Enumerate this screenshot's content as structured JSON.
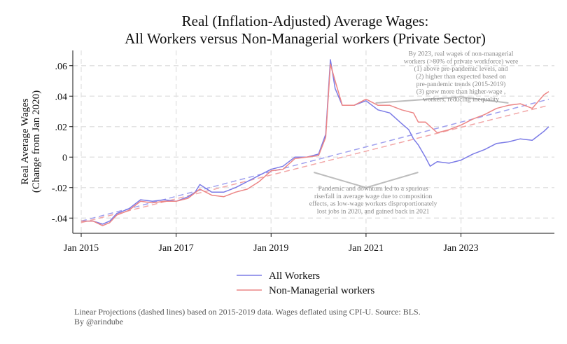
{
  "chart_data": {
    "type": "line",
    "title": [
      "Real (Inflation-Adjusted) Average Wages:",
      "All Workers versus Non-Managerial workers (Private Sector)"
    ],
    "ylabel": [
      "Real Average Wages",
      "(Change from Jan 2020)"
    ],
    "xlabel": "",
    "x_start": "Jan 2015",
    "x_unit": "years since Jan 2015",
    "xlim": [
      0,
      9.85
    ],
    "ylim": [
      -0.05,
      0.07
    ],
    "xticks": [
      {
        "label": "Jan 2015",
        "value": 0
      },
      {
        "label": "Jan 2017",
        "value": 2
      },
      {
        "label": "Jan 2019",
        "value": 4
      },
      {
        "label": "Jan 2021",
        "value": 6
      },
      {
        "label": "Jan 2023",
        "value": 8
      }
    ],
    "yticks": [
      {
        "label": "-.04",
        "value": -0.04
      },
      {
        "label": "-.02",
        "value": -0.02
      },
      {
        "label": "0",
        "value": 0
      },
      {
        "label": ".02",
        "value": 0.02
      },
      {
        "label": ".04",
        "value": 0.04
      },
      {
        "label": ".06",
        "value": 0.06
      }
    ],
    "grid": true,
    "legend_position": "bottom",
    "series": [
      {
        "name": "All Workers",
        "color": "#7b7be6",
        "points": [
          [
            0,
            -0.042
          ],
          [
            0.25,
            -0.042
          ],
          [
            0.45,
            -0.044
          ],
          [
            0.6,
            -0.042
          ],
          [
            0.75,
            -0.037
          ],
          [
            1.0,
            -0.034
          ],
          [
            1.25,
            -0.028
          ],
          [
            1.5,
            -0.029
          ],
          [
            1.75,
            -0.028
          ],
          [
            2.0,
            -0.029
          ],
          [
            2.25,
            -0.026
          ],
          [
            2.4,
            -0.023
          ],
          [
            2.5,
            -0.018
          ],
          [
            2.75,
            -0.023
          ],
          [
            3.0,
            -0.023
          ],
          [
            3.25,
            -0.02
          ],
          [
            3.5,
            -0.016
          ],
          [
            3.75,
            -0.012
          ],
          [
            4.0,
            -0.008
          ],
          [
            4.25,
            -0.006
          ],
          [
            4.5,
            0.0
          ],
          [
            4.75,
            0.0
          ],
          [
            5.0,
            0.002
          ],
          [
            5.15,
            0.015
          ],
          [
            5.25,
            0.064
          ],
          [
            5.35,
            0.045
          ],
          [
            5.5,
            0.034
          ],
          [
            5.75,
            0.034
          ],
          [
            6.0,
            0.037
          ],
          [
            6.25,
            0.031
          ],
          [
            6.5,
            0.029
          ],
          [
            6.75,
            0.022
          ],
          [
            6.9,
            0.018
          ],
          [
            7.0,
            0.012
          ],
          [
            7.1,
            0.008
          ],
          [
            7.25,
            0.0
          ],
          [
            7.35,
            -0.006
          ],
          [
            7.5,
            -0.003
          ],
          [
            7.75,
            -0.004
          ],
          [
            8.0,
            -0.002
          ],
          [
            8.25,
            0.002
          ],
          [
            8.5,
            0.005
          ],
          [
            8.75,
            0.009
          ],
          [
            9.0,
            0.01
          ],
          [
            9.25,
            0.012
          ],
          [
            9.5,
            0.011
          ],
          [
            9.75,
            0.017
          ],
          [
            9.85,
            0.02
          ]
        ]
      },
      {
        "name": "Non-Managerial workers",
        "color": "#ec8585",
        "points": [
          [
            0,
            -0.042
          ],
          [
            0.25,
            -0.042
          ],
          [
            0.45,
            -0.045
          ],
          [
            0.6,
            -0.043
          ],
          [
            0.75,
            -0.038
          ],
          [
            1.0,
            -0.035
          ],
          [
            1.25,
            -0.029
          ],
          [
            1.5,
            -0.03
          ],
          [
            1.75,
            -0.029
          ],
          [
            2.0,
            -0.029
          ],
          [
            2.25,
            -0.027
          ],
          [
            2.5,
            -0.021
          ],
          [
            2.75,
            -0.025
          ],
          [
            3.0,
            -0.026
          ],
          [
            3.25,
            -0.023
          ],
          [
            3.5,
            -0.021
          ],
          [
            3.75,
            -0.016
          ],
          [
            4.0,
            -0.009
          ],
          [
            4.25,
            -0.008
          ],
          [
            4.5,
            -0.001
          ],
          [
            4.75,
            0.0
          ],
          [
            5.0,
            0.001
          ],
          [
            5.15,
            0.013
          ],
          [
            5.25,
            0.061
          ],
          [
            5.35,
            0.05
          ],
          [
            5.5,
            0.034
          ],
          [
            5.75,
            0.034
          ],
          [
            6.0,
            0.038
          ],
          [
            6.25,
            0.034
          ],
          [
            6.5,
            0.034
          ],
          [
            6.75,
            0.031
          ],
          [
            7.0,
            0.029
          ],
          [
            7.1,
            0.023
          ],
          [
            7.25,
            0.023
          ],
          [
            7.5,
            0.016
          ],
          [
            7.75,
            0.018
          ],
          [
            8.0,
            0.021
          ],
          [
            8.25,
            0.025
          ],
          [
            8.5,
            0.028
          ],
          [
            8.75,
            0.032
          ],
          [
            9.0,
            0.034
          ],
          [
            9.25,
            0.035
          ],
          [
            9.5,
            0.032
          ],
          [
            9.75,
            0.041
          ],
          [
            9.85,
            0.043
          ]
        ]
      }
    ],
    "projections": [
      {
        "name": "All Workers projection",
        "color": "#9fa0ee",
        "points": [
          [
            0,
            -0.042
          ],
          [
            9.85,
            0.038
          ]
        ]
      },
      {
        "name": "Non-Managerial projection",
        "color": "#f2a6a6",
        "points": [
          [
            0,
            -0.043
          ],
          [
            9.85,
            0.034
          ]
        ]
      }
    ],
    "annotations": [
      {
        "id": "post-pandemic",
        "lines": [
          "By 2023, real wages of non-managerial",
          "workers (>80% of private workforce) were",
          "(1) above pre-pandemic levels, and",
          "(2) higher than expected based on",
          "pre-pandemic trends (2015-2019)",
          "(3) grew more than higher-wage ,",
          "workers, reducing inequality"
        ],
        "center": [
          8.0,
          0.0665
        ],
        "bracket": [
          [
            6.2,
            0.0355
          ],
          [
            8.0,
            0.0395
          ],
          [
            9.0,
            0.0355
          ]
        ]
      },
      {
        "id": "pandemic",
        "lines": [
          "Pandemic and downturn led to a spurious",
          "rise/fall in average wage due to composition",
          "effects, as low-wage workers disproportionately",
          "lost jobs in 2020, and gained back in 2021"
        ],
        "center": [
          6.15,
          -0.022
        ],
        "bracket": [
          [
            4.9,
            -0.01
          ],
          [
            6.0,
            -0.02
          ],
          [
            7.1,
            -0.01
          ]
        ]
      }
    ],
    "legend": [
      {
        "label": "All Workers",
        "color": "#7b7be6"
      },
      {
        "label": "Non-Managerial workers",
        "color": "#ec8585"
      }
    ],
    "footnote": [
      "Linear Projections (dashed lines) based on 2015-2019 data. Wages deflated using CPI-U. Source: BLS.",
      "By @arindube"
    ]
  }
}
